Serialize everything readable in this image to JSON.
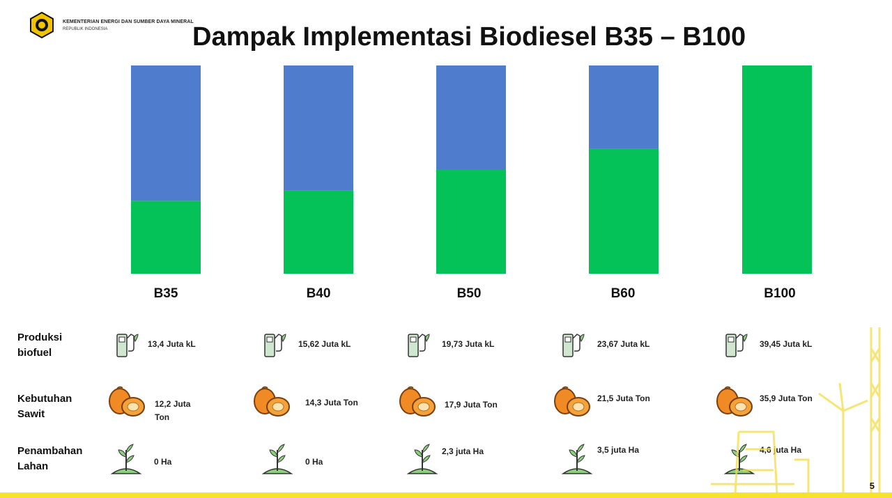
{
  "header": {
    "ministry": "KEMENTERIAN ENERGI DAN SUMBER DAYA MINERAL",
    "republic": "REPUBLIK INDONESIA",
    "title": "Dampak Implementasi Biodiesel B35 – B100",
    "page_number": "5"
  },
  "colors": {
    "green": "#04c257",
    "blue": "#4f7ccd",
    "accent_yellow": "#f7e32a"
  },
  "chart_data": {
    "type": "bar",
    "stacked": true,
    "normalized_100_percent": true,
    "categories": [
      "B35",
      "B40",
      "B50",
      "B60",
      "B100"
    ],
    "series": [
      {
        "color": "#04c257",
        "values": [
          35,
          40,
          50,
          60,
          100
        ]
      },
      {
        "color": "#4f7ccd",
        "values": [
          65,
          60,
          50,
          40,
          0
        ]
      }
    ],
    "ylim": [
      0,
      100
    ],
    "grid": false,
    "legend": "none"
  },
  "rows": [
    {
      "label": "Produksi biofuel",
      "icon": "fuel-pump-icon",
      "values": [
        "13,4 Juta kL",
        "15,62 Juta kL",
        "19,73 Juta kL",
        "23,67 Juta kL",
        "39,45 Juta kL"
      ]
    },
    {
      "label": "Kebutuhan Sawit",
      "icon": "palm-fruit-icon",
      "values": [
        "12,2 Juta Ton",
        "14,3 Juta Ton",
        "17,9 Juta Ton",
        "21,5 Juta Ton",
        "35,9 Juta Ton"
      ]
    },
    {
      "label": "Penambahan Lahan",
      "icon": "sprout-icon",
      "values": [
        "0 Ha",
        "0 Ha",
        "2,3 juta Ha",
        "3,5 juta Ha",
        "4,6 juta Ha"
      ]
    }
  ]
}
